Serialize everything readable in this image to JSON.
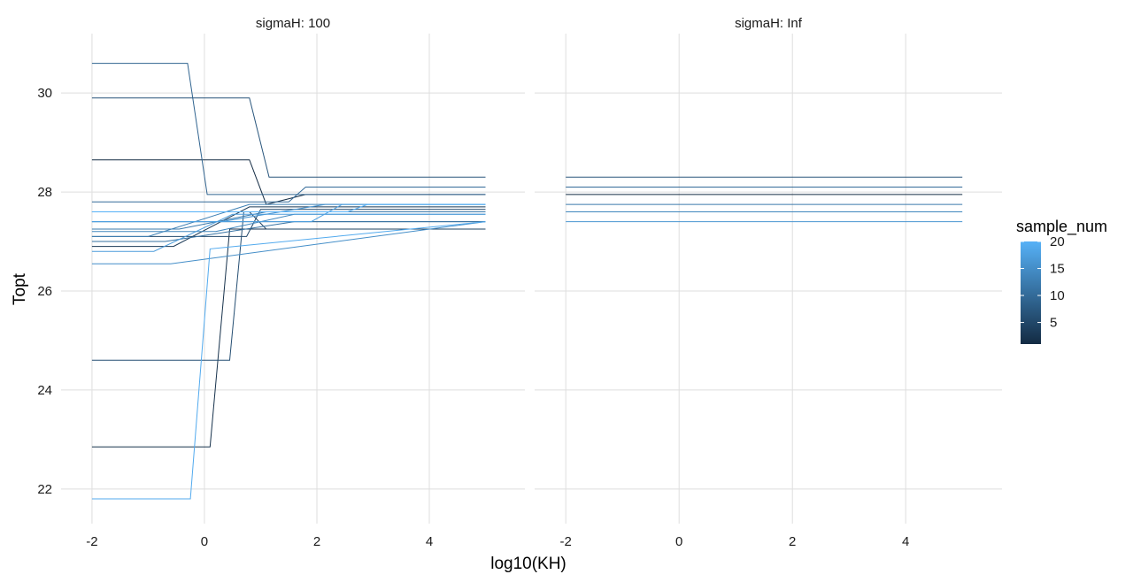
{
  "chart_data": {
    "type": "line",
    "facet_variable": "sigmaH",
    "facets": [
      {
        "label": "sigmaH: 100",
        "series": [
          {
            "sample_num": 1,
            "x": [
              -2,
              0.8,
              1.1,
              1.8,
              5
            ],
            "y": [
              28.65,
              28.65,
              27.75,
              27.95,
              27.95
            ]
          },
          {
            "sample_num": 2,
            "x": [
              -2,
              0.1,
              0.45,
              5
            ],
            "y": [
              22.85,
              22.85,
              27.25,
              27.25
            ]
          },
          {
            "sample_num": 3,
            "x": [
              -2,
              -0.55,
              0.8,
              5
            ],
            "y": [
              26.9,
              26.9,
              27.7,
              27.7
            ]
          },
          {
            "sample_num": 4,
            "x": [
              -2,
              -0.55,
              0.8,
              1.1,
              5
            ],
            "y": [
              27.6,
              27.6,
              27.6,
              27.25,
              27.25
            ]
          },
          {
            "sample_num": 5,
            "x": [
              -2,
              0.75,
              1.0,
              5
            ],
            "y": [
              27.1,
              27.1,
              27.65,
              27.65
            ]
          },
          {
            "sample_num": 6,
            "x": [
              -2,
              0.45,
              0.7,
              5
            ],
            "y": [
              24.6,
              24.6,
              27.6,
              27.6
            ]
          },
          {
            "sample_num": 7,
            "x": [
              -2,
              0.8,
              1.15,
              5
            ],
            "y": [
              29.9,
              29.9,
              28.3,
              28.3
            ]
          },
          {
            "sample_num": 8,
            "x": [
              -2,
              1.3,
              5
            ],
            "y": [
              27.4,
              27.4,
              27.4
            ]
          },
          {
            "sample_num": 9,
            "x": [
              -2,
              -0.3,
              0.05,
              1.0,
              5
            ],
            "y": [
              30.6,
              30.6,
              27.95,
              27.95,
              27.95
            ]
          },
          {
            "sample_num": 10,
            "x": [
              -2,
              1.5,
              1.8,
              5
            ],
            "y": [
              27.8,
              27.8,
              28.1,
              28.1
            ]
          },
          {
            "sample_num": 11,
            "x": [
              -2,
              -0.7,
              1.6,
              5
            ],
            "y": [
              27.0,
              27.0,
              27.4,
              27.4
            ]
          },
          {
            "sample_num": 12,
            "x": [
              -2,
              -0.45,
              1.1,
              5
            ],
            "y": [
              27.25,
              27.25,
              27.6,
              27.6
            ]
          },
          {
            "sample_num": 13,
            "x": [
              -2,
              -1.0,
              0.8,
              5
            ],
            "y": [
              27.1,
              27.1,
              27.75,
              27.75
            ]
          },
          {
            "sample_num": 14,
            "x": [
              -2,
              0.2,
              1.6,
              5
            ],
            "y": [
              27.2,
              27.2,
              27.55,
              27.55
            ]
          },
          {
            "sample_num": 15,
            "x": [
              -2,
              -0.6,
              5
            ],
            "y": [
              26.55,
              26.55,
              27.4
            ]
          },
          {
            "sample_num": 16,
            "x": [
              -2,
              0.3,
              2.15,
              5
            ],
            "y": [
              27.4,
              27.4,
              27.75,
              27.75
            ]
          },
          {
            "sample_num": 17,
            "x": [
              -2,
              -0.9,
              0.5,
              5
            ],
            "y": [
              26.8,
              26.8,
              27.55,
              27.55
            ]
          },
          {
            "sample_num": 18,
            "x": [
              -2,
              1.9,
              2.45,
              5
            ],
            "y": [
              27.4,
              27.4,
              27.75,
              27.75
            ]
          },
          {
            "sample_num": 19,
            "x": [
              -2,
              -0.25,
              0.1,
              5
            ],
            "y": [
              21.8,
              21.8,
              26.85,
              27.4
            ]
          },
          {
            "sample_num": 20,
            "x": [
              -2,
              2.55,
              2.9,
              5
            ],
            "y": [
              27.6,
              27.6,
              27.75,
              27.75
            ]
          }
        ]
      },
      {
        "label": "sigmaH: Inf",
        "series": [
          {
            "sample_num": 1,
            "x": [
              -2,
              5
            ],
            "y": [
              27.95,
              27.95
            ]
          },
          {
            "sample_num": 7,
            "x": [
              -2,
              5
            ],
            "y": [
              28.3,
              28.3
            ]
          },
          {
            "sample_num": 10,
            "x": [
              -2,
              5
            ],
            "y": [
              28.1,
              28.1
            ]
          },
          {
            "sample_num": 12,
            "x": [
              -2,
              5
            ],
            "y": [
              27.75,
              27.75
            ]
          },
          {
            "sample_num": 14,
            "x": [
              -2,
              5
            ],
            "y": [
              27.6,
              27.6
            ]
          },
          {
            "sample_num": 16,
            "x": [
              -2,
              5
            ],
            "y": [
              27.4,
              27.4
            ]
          }
        ]
      }
    ],
    "xlabel": "log10(KH)",
    "ylabel": "Topt",
    "xlim": [
      -2.55,
      5.7
    ],
    "ylim": [
      21.3,
      31.2
    ],
    "x_ticks": [
      -2,
      0,
      2,
      4
    ],
    "x_tick_labels": [
      "-2",
      "0",
      "2",
      "4"
    ],
    "y_ticks": [
      22,
      24,
      26,
      28,
      30
    ],
    "y_tick_labels": [
      "22",
      "24",
      "26",
      "28",
      "30"
    ],
    "grid": true,
    "legend": {
      "title": "sample_num",
      "type": "colorbar",
      "placement": "right",
      "range": [
        1,
        20
      ],
      "breaks": [
        5,
        10,
        15,
        20
      ],
      "break_labels": [
        "5",
        "10",
        "15",
        "20"
      ],
      "color_low": "#132b43",
      "color_high": "#56b1f7"
    }
  }
}
